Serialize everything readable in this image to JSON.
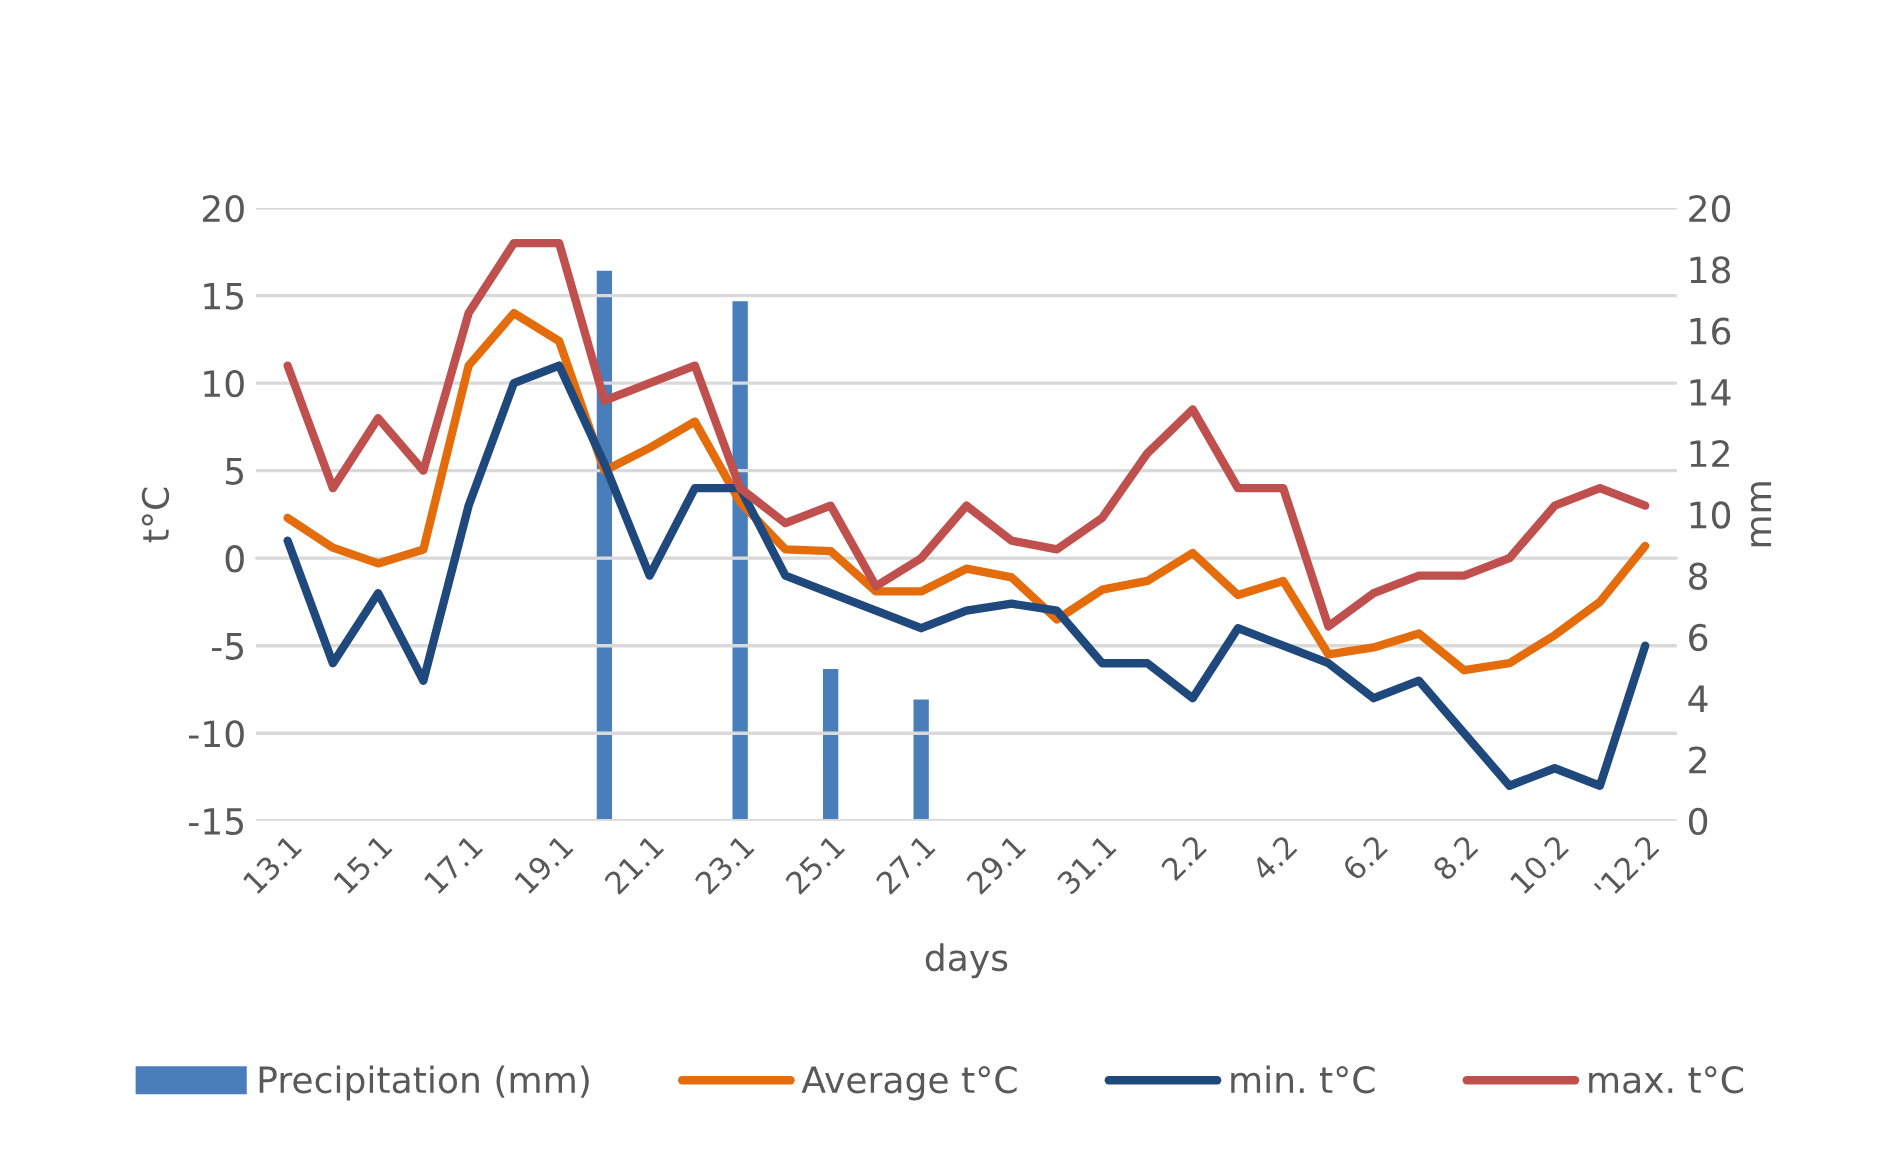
{
  "chart_data": {
    "type": "line",
    "xlabel": "days",
    "ylabel": "t°C",
    "y2label": "mm",
    "categories": [
      "13.1",
      null,
      "15.1",
      null,
      "17.1",
      null,
      "19.1",
      null,
      "21.1",
      null,
      "23.1",
      null,
      "25.1",
      null,
      "27.1",
      null,
      "29.1",
      null,
      "31.1",
      null,
      "2.2",
      null,
      "4.2",
      null,
      "6.2",
      null,
      "8.2",
      null,
      "10.2",
      null,
      "'12.2"
    ],
    "series": [
      {
        "name": "Precipitation (mm)",
        "type": "bar",
        "axis": "y2",
        "color": "#4a7ebb",
        "values": [
          null,
          null,
          null,
          null,
          null,
          null,
          null,
          18,
          null,
          null,
          17,
          null,
          5,
          null,
          4,
          null,
          null,
          null,
          null,
          null,
          null,
          null,
          null,
          null,
          null,
          null,
          null,
          null,
          null,
          null,
          null
        ]
      },
      {
        "name": "Average t°C",
        "color": "#e46c0a",
        "values": [
          2.3,
          0.6,
          -0.3,
          0.5,
          11,
          14,
          12.4,
          5,
          6.3,
          7.8,
          3.2,
          0.5,
          0.4,
          -1.9,
          -1.9,
          -0.6,
          -1.1,
          -3.5,
          -1.8,
          -1.3,
          0.3,
          -2.1,
          -1.3,
          -5.5,
          -5.1,
          -4.3,
          -6.4,
          -6,
          -4.4,
          -2.5,
          0.7
        ]
      },
      {
        "name": "min. t°C",
        "color": "#1f497d",
        "values": [
          1,
          -6,
          -2,
          -7,
          3,
          10,
          11,
          5.4,
          -1,
          4,
          4,
          -1,
          -2,
          -3,
          -4,
          -3,
          -2.6,
          -3,
          -6,
          -6,
          -8,
          -4,
          -5,
          -6,
          -8,
          -7,
          -10,
          -13,
          -12,
          -13,
          -5
        ]
      },
      {
        "name": "max. t°C",
        "color": "#c0504d",
        "values": [
          11,
          4,
          8,
          5,
          14,
          18,
          18,
          9,
          10,
          11,
          4,
          2,
          3,
          -1.6,
          0,
          3,
          1,
          0.5,
          2.3,
          6,
          8.5,
          4,
          4,
          -3.9,
          -2,
          -1,
          -1,
          0,
          3,
          4,
          3
        ]
      }
    ],
    "ylim": [
      -15,
      20
    ],
    "yticks": [
      -15,
      -10,
      -5,
      0,
      5,
      10,
      15,
      20
    ],
    "y2lim": [
      0,
      20
    ],
    "y2ticks": [
      0,
      2,
      4,
      6,
      8,
      10,
      12,
      14,
      16,
      18,
      20
    ],
    "grid": "y",
    "legend": "bottom",
    "marker": "none",
    "line_style": "solid"
  }
}
